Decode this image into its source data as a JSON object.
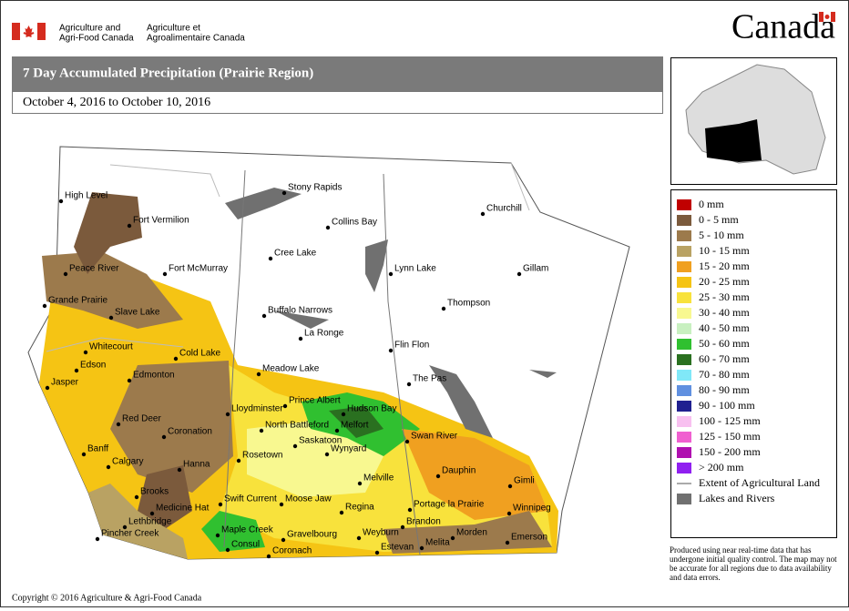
{
  "header": {
    "agency_en": [
      "Agriculture and",
      "Agri-Food Canada"
    ],
    "agency_fr": [
      "Agriculture et",
      "Agroalimentaire Canada"
    ],
    "wordmark": "Canada"
  },
  "title": "7 Day Accumulated Precipitation (Prairie Region)",
  "date_range": "October 4, 2016 to October 10, 2016",
  "legend": [
    {
      "label": "0 mm",
      "color": "#c00000"
    },
    {
      "label": "0 - 5 mm",
      "color": "#7b5a3c"
    },
    {
      "label": "5 - 10 mm",
      "color": "#9c7a4c"
    },
    {
      "label": "10 - 15 mm",
      "color": "#b9a263"
    },
    {
      "label": "15 - 20 mm",
      "color": "#f0a020"
    },
    {
      "label": "20 - 25 mm",
      "color": "#f5c414"
    },
    {
      "label": "25 - 30 mm",
      "color": "#f8e23c"
    },
    {
      "label": "30 - 40 mm",
      "color": "#f8f890"
    },
    {
      "label": "40 - 50 mm",
      "color": "#c8f0c0"
    },
    {
      "label": "50 - 60 mm",
      "color": "#30c030"
    },
    {
      "label": "60 - 70 mm",
      "color": "#2a7020"
    },
    {
      "label": "70 - 80 mm",
      "color": "#80e8f8"
    },
    {
      "label": "80 - 90 mm",
      "color": "#6090e0"
    },
    {
      "label": "90 - 100 mm",
      "color": "#202090"
    },
    {
      "label": "100 - 125 mm",
      "color": "#f8c0f0"
    },
    {
      "label": "125 - 150 mm",
      "color": "#f060d0"
    },
    {
      "label": "150 - 200 mm",
      "color": "#b010b0"
    },
    {
      "label": "> 200 mm",
      "color": "#9020f0"
    }
  ],
  "legend_extra": [
    {
      "label": "Extent of Agricultural Land",
      "symbol": "line"
    },
    {
      "label": "Lakes and Rivers",
      "symbol": "box",
      "color": "#707070"
    }
  ],
  "cities": [
    "High Level",
    "Fort Vermilion",
    "Stony Rapids",
    "Collins Bay",
    "Churchill",
    "Peace River",
    "Fort McMurray",
    "Cree Lake",
    "Lynn Lake",
    "Gillam",
    "Grande Prairie",
    "Slave Lake",
    "Buffalo Narrows",
    "Thompson",
    "Whitecourt",
    "La Ronge",
    "Flin Flon",
    "Cold Lake",
    "Edson",
    "Edmonton",
    "Meadow Lake",
    "The Pas",
    "Jasper",
    "Prince Albert",
    "Lloydminster",
    "Hudson Bay",
    "Red Deer",
    "North Battleford",
    "Melfort",
    "Swan River",
    "Coronation",
    "Saskatoon",
    "Wynyard",
    "Banff",
    "Hanna",
    "Rosetown",
    "Calgary",
    "Dauphin",
    "Gimli",
    "Melville",
    "Brooks",
    "Swift Current",
    "Moose Jaw",
    "Portage la Prairie",
    "Winnipeg",
    "Regina",
    "Medicine Hat",
    "Lethbridge",
    "Brandon",
    "Maple Creek",
    "Gravelbourg",
    "Weyburn",
    "Morden",
    "Emerson",
    "Pincher Creek",
    "Consul",
    "Coronach",
    "Estevan",
    "Melita"
  ],
  "note": "Produced using near real-time data that has undergone initial quality control.  The map may not be accurate for all regions due to data availability and data errors.",
  "copyright": "Copyright © 2016 Agriculture & Agri-Food Canada"
}
